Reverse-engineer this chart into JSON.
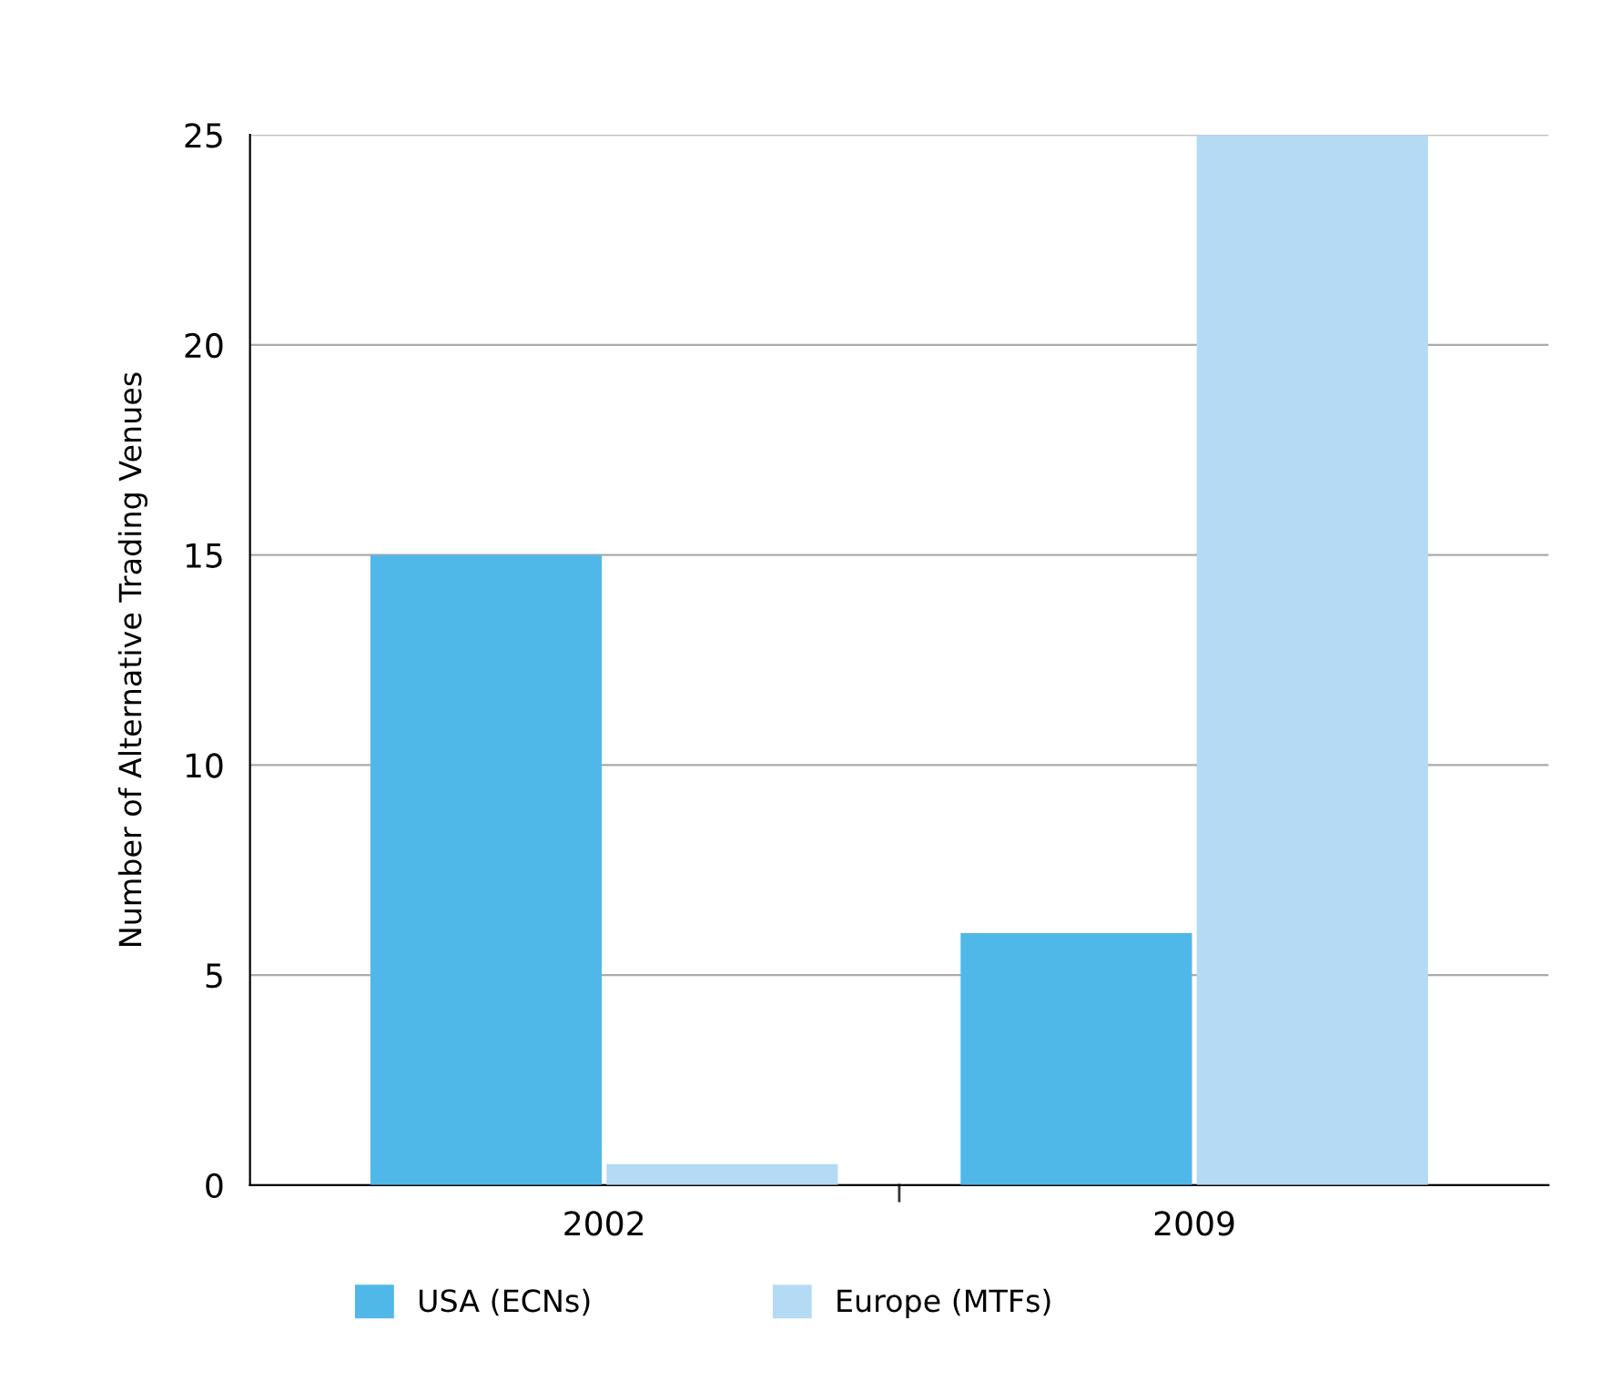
{
  "chart_data": {
    "type": "bar",
    "ylabel": "Number of Alternative Trading Venues",
    "categories": [
      "2002",
      "2009"
    ],
    "series": [
      {
        "name": "USA (ECNs)",
        "color": "#4fb8e8",
        "values": [
          15,
          6
        ]
      },
      {
        "name": "Europe (MTFs)",
        "color": "#b5dbf4",
        "values": [
          0.5,
          25
        ]
      }
    ],
    "ylim": [
      0,
      25
    ],
    "yticks": [
      0,
      5,
      10,
      15,
      20,
      25
    ],
    "grid": "y",
    "legend": "bottom"
  }
}
